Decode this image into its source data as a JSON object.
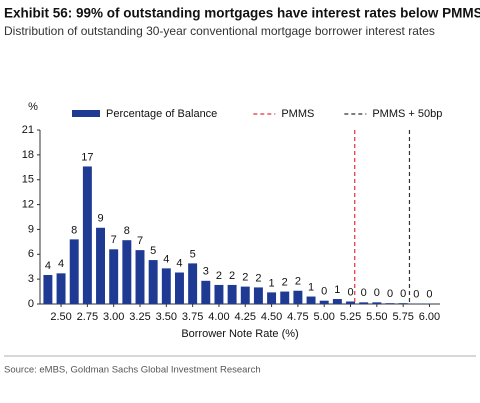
{
  "chart_data": {
    "type": "bar",
    "title": "Exhibit 56: 99% of outstanding mortgages have interest rates below PMMS",
    "subtitle": "Distribution of outstanding 30-year conventional mortgage borrower interest rates",
    "y_label": "%",
    "x_label": "Borrower Note Rate (%)",
    "source": "Source: eMBS, Goldman Sachs Global Investment Research",
    "x": [
      2.375,
      2.5,
      2.625,
      2.75,
      2.875,
      3.0,
      3.125,
      3.25,
      3.375,
      3.5,
      3.625,
      3.75,
      3.875,
      4.0,
      4.125,
      4.25,
      4.375,
      4.5,
      4.625,
      4.75,
      4.875,
      5.0,
      5.125,
      5.25,
      5.375,
      5.5,
      5.625,
      5.75,
      5.875,
      6.0
    ],
    "series": [
      {
        "name": "Percentage of Balance",
        "color": "#1f3a93",
        "values": [
          3.5,
          3.7,
          7.8,
          16.6,
          9.2,
          6.6,
          7.7,
          6.5,
          5.3,
          4.3,
          3.8,
          4.9,
          2.8,
          2.3,
          2.3,
          2.1,
          2.0,
          1.4,
          1.5,
          1.6,
          0.9,
          0.4,
          0.6,
          0.3,
          0.2,
          0.2,
          0.1,
          0.1,
          0.05,
          0.05
        ],
        "value_labels": [
          "4",
          "4",
          "8",
          "17",
          "9",
          "7",
          "8",
          "7",
          "5",
          "4",
          "4",
          "5",
          "3",
          "2",
          "2",
          "2",
          "2",
          "1",
          "2",
          "2",
          "1",
          "0",
          "1",
          "0",
          "0",
          "0",
          "0",
          "0",
          "0",
          "0"
        ]
      }
    ],
    "reference_lines": [
      {
        "name": "PMMS",
        "x": 5.29,
        "color": "#e0303a"
      },
      {
        "name": "PMMS + 50bp",
        "x": 5.81,
        "color": "#333333"
      }
    ],
    "xlim": [
      2.3,
      6.1
    ],
    "xticks": [
      {
        "value": 2.5,
        "label": "2.50"
      },
      2.75,
      {
        "value": 3.0,
        "label": "3.00"
      },
      3.25,
      {
        "value": 3.5,
        "label": "3.50"
      },
      3.75,
      {
        "value": 4.0,
        "label": "4.00"
      },
      4.25,
      {
        "value": 4.5,
        "label": "4.50"
      },
      4.75,
      {
        "value": 5.0,
        "label": "5.00"
      },
      5.25,
      {
        "value": 5.5,
        "label": "5.50"
      },
      5.75,
      {
        "value": 6.0,
        "label": "6.00"
      }
    ],
    "ylim": [
      0,
      21
    ],
    "yticks": [
      0,
      3,
      6,
      9,
      12,
      15,
      18,
      21
    ]
  }
}
